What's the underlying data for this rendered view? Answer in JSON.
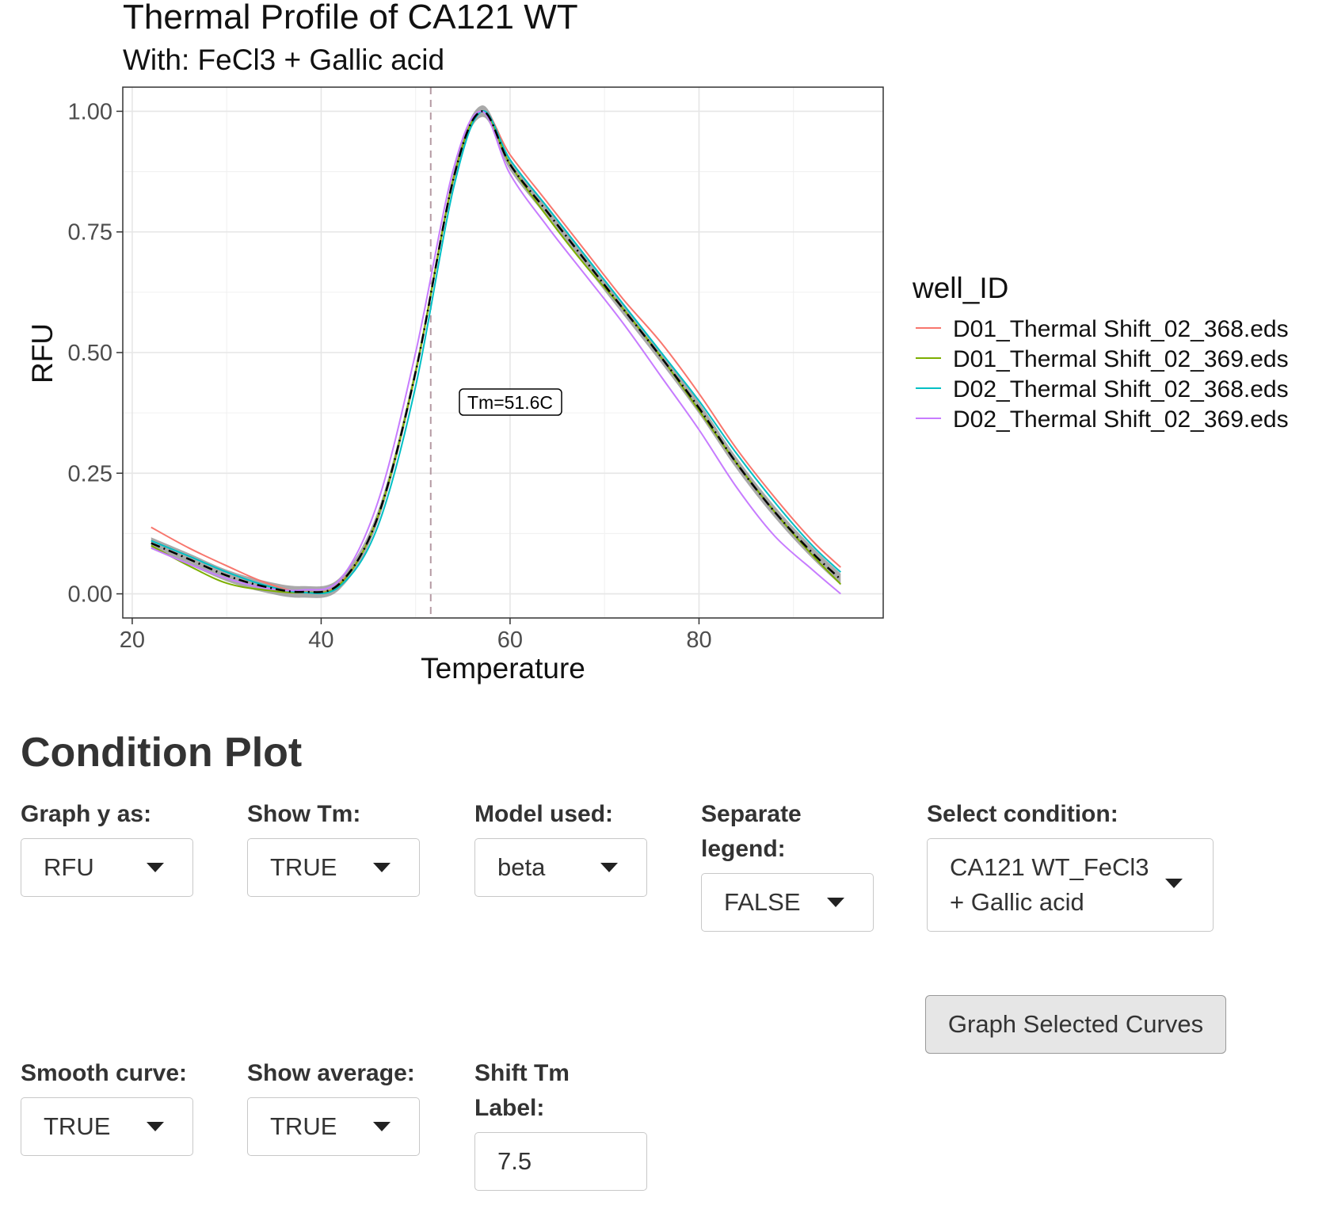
{
  "chart": {
    "title": "Thermal Profile of CA121 WT",
    "subtitle": "With: FeCl3 + Gallic acid",
    "xlabel": "Temperature",
    "ylabel": "RFU",
    "annotation": "Tm=51.6C",
    "legend_title": "well_ID"
  },
  "chart_data": {
    "type": "line",
    "title": "Thermal Profile of CA121 WT",
    "subtitle": "With: FeCl3 + Gallic acid",
    "xlabel": "Temperature",
    "ylabel": "RFU",
    "xlim": [
      19,
      99.5
    ],
    "ylim": [
      -0.05,
      1.05
    ],
    "xticks": [
      20,
      40,
      60,
      80
    ],
    "yticks": [
      0.0,
      0.25,
      0.5,
      0.75,
      1.0
    ],
    "ytick_labels": [
      "0.00",
      "0.25",
      "0.50",
      "0.75",
      "1.00"
    ],
    "grid": true,
    "legend_position": "right",
    "legend_title": "well_ID",
    "tm_line_x": 51.6,
    "tm_label": "Tm=51.6C",
    "series": [
      {
        "name": "D01_Thermal Shift_02_368.eds",
        "color": "#F8766D",
        "x": [
          22,
          26,
          30,
          34,
          38,
          42,
          46,
          50,
          54,
          57,
          60,
          64,
          68,
          72,
          76,
          80,
          84,
          88,
          92,
          95
        ],
        "y": [
          0.138,
          0.095,
          0.058,
          0.024,
          0.004,
          0.022,
          0.16,
          0.46,
          0.86,
          1.0,
          0.91,
          0.81,
          0.71,
          0.61,
          0.52,
          0.415,
          0.3,
          0.2,
          0.11,
          0.055
        ]
      },
      {
        "name": "D01_Thermal Shift_02_369.eds",
        "color": "#7CAE00",
        "x": [
          22,
          26,
          30,
          34,
          38,
          42,
          46,
          50,
          54,
          57,
          60,
          64,
          68,
          72,
          76,
          80,
          84,
          88,
          92,
          95
        ],
        "y": [
          0.1,
          0.058,
          0.022,
          0.008,
          0.003,
          0.02,
          0.16,
          0.46,
          0.86,
          1.0,
          0.89,
          0.78,
          0.68,
          0.59,
          0.49,
          0.38,
          0.27,
          0.17,
          0.08,
          0.02
        ]
      },
      {
        "name": "D02_Thermal Shift_02_368.eds",
        "color": "#00BFC4",
        "x": [
          22,
          26,
          30,
          34,
          38,
          42,
          46,
          50,
          54,
          57,
          60,
          64,
          68,
          72,
          76,
          80,
          84,
          88,
          92,
          95
        ],
        "y": [
          0.11,
          0.078,
          0.045,
          0.018,
          0.003,
          0.016,
          0.14,
          0.43,
          0.84,
          1.0,
          0.9,
          0.8,
          0.7,
          0.6,
          0.5,
          0.4,
          0.29,
          0.19,
          0.1,
          0.045
        ]
      },
      {
        "name": "D02_Thermal Shift_02_369.eds",
        "color": "#C77CFF",
        "x": [
          22,
          26,
          30,
          34,
          38,
          42,
          46,
          50,
          54,
          57,
          60,
          64,
          68,
          72,
          76,
          80,
          84,
          88,
          92,
          95
        ],
        "y": [
          0.095,
          0.062,
          0.032,
          0.012,
          0.008,
          0.03,
          0.19,
          0.5,
          0.88,
          1.0,
          0.87,
          0.76,
          0.66,
          0.56,
          0.45,
          0.34,
          0.22,
          0.12,
          0.05,
          0.0
        ]
      }
    ],
    "average": {
      "name": "average",
      "x": [
        22,
        26,
        30,
        34,
        38,
        42,
        46,
        50,
        54,
        57,
        60,
        64,
        68,
        72,
        76,
        80,
        84,
        88,
        92,
        95
      ],
      "y": [
        0.105,
        0.072,
        0.038,
        0.015,
        0.004,
        0.022,
        0.16,
        0.46,
        0.86,
        1.0,
        0.89,
        0.79,
        0.69,
        0.59,
        0.49,
        0.385,
        0.27,
        0.17,
        0.085,
        0.03
      ],
      "band": 0.012
    }
  },
  "controls": {
    "section_title": "Condition Plot",
    "graph_y": {
      "label": "Graph y as:",
      "value": "RFU"
    },
    "show_tm": {
      "label": "Show Tm:",
      "value": "TRUE"
    },
    "model": {
      "label": "Model used:",
      "value": "beta"
    },
    "separate_legend": {
      "label": "Separate legend:",
      "value": "FALSE"
    },
    "select_condition": {
      "label": "Select condition:",
      "value": "CA121 WT_FeCl3 + Gallic acid"
    },
    "graph_button": "Graph Selected Curves",
    "smooth": {
      "label": "Smooth curve:",
      "value": "TRUE"
    },
    "show_average": {
      "label": "Show average:",
      "value": "TRUE"
    },
    "shift_tm": {
      "label": "Shift Tm Label:",
      "value": "7.5"
    }
  }
}
